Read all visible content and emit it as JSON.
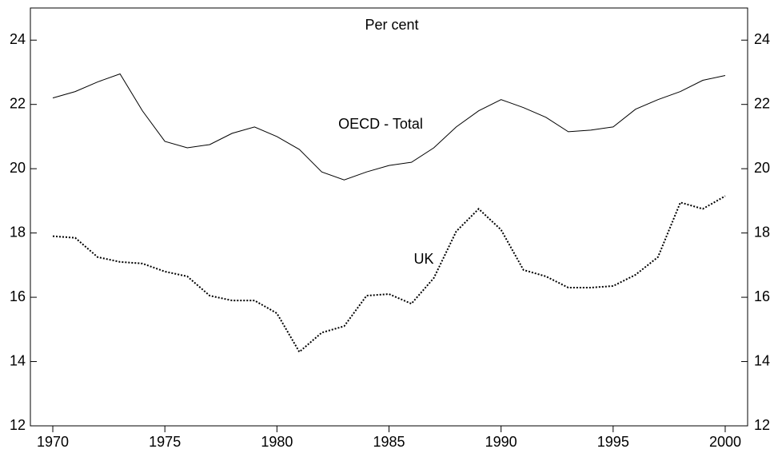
{
  "chart_data": {
    "type": "line",
    "subtitle": "Per cent",
    "x": [
      1970,
      1971,
      1972,
      1973,
      1974,
      1975,
      1976,
      1977,
      1978,
      1979,
      1980,
      1981,
      1982,
      1983,
      1984,
      1985,
      1986,
      1987,
      1988,
      1989,
      1990,
      1991,
      1992,
      1993,
      1994,
      1995,
      1996,
      1997,
      1998,
      1999,
      2000
    ],
    "series": [
      {
        "name": "OECD - Total",
        "color": "#000000",
        "dash": "solid",
        "values": [
          22.2,
          22.4,
          22.7,
          22.95,
          21.8,
          20.85,
          20.65,
          20.75,
          21.1,
          21.3,
          21.0,
          20.6,
          19.9,
          19.65,
          19.9,
          20.1,
          20.2,
          20.65,
          21.3,
          21.8,
          22.15,
          21.9,
          21.6,
          21.15,
          21.2,
          21.3,
          21.85,
          22.15,
          22.4,
          22.75,
          22.9
        ]
      },
      {
        "name": "UK",
        "color": "#000000",
        "dash": "dotted",
        "values": [
          17.9,
          17.85,
          17.25,
          17.1,
          17.05,
          16.8,
          16.65,
          16.05,
          15.9,
          15.9,
          15.5,
          14.3,
          14.9,
          15.1,
          16.05,
          16.1,
          15.8,
          16.6,
          18.05,
          18.75,
          18.1,
          16.85,
          16.65,
          16.3,
          16.3,
          16.35,
          16.7,
          17.25,
          18.95,
          18.75,
          19.15
        ]
      }
    ],
    "xlim": [
      1969,
      2001
    ],
    "xticks": [
      1970,
      1975,
      1980,
      1985,
      1990,
      1995,
      2000
    ],
    "ylim": [
      12,
      25
    ],
    "yticks": [
      12,
      14,
      16,
      18,
      20,
      22,
      24
    ],
    "y2lim": [
      12,
      25
    ],
    "y2ticks": [
      12,
      14,
      16,
      18,
      20,
      22,
      24
    ],
    "grid": false
  }
}
